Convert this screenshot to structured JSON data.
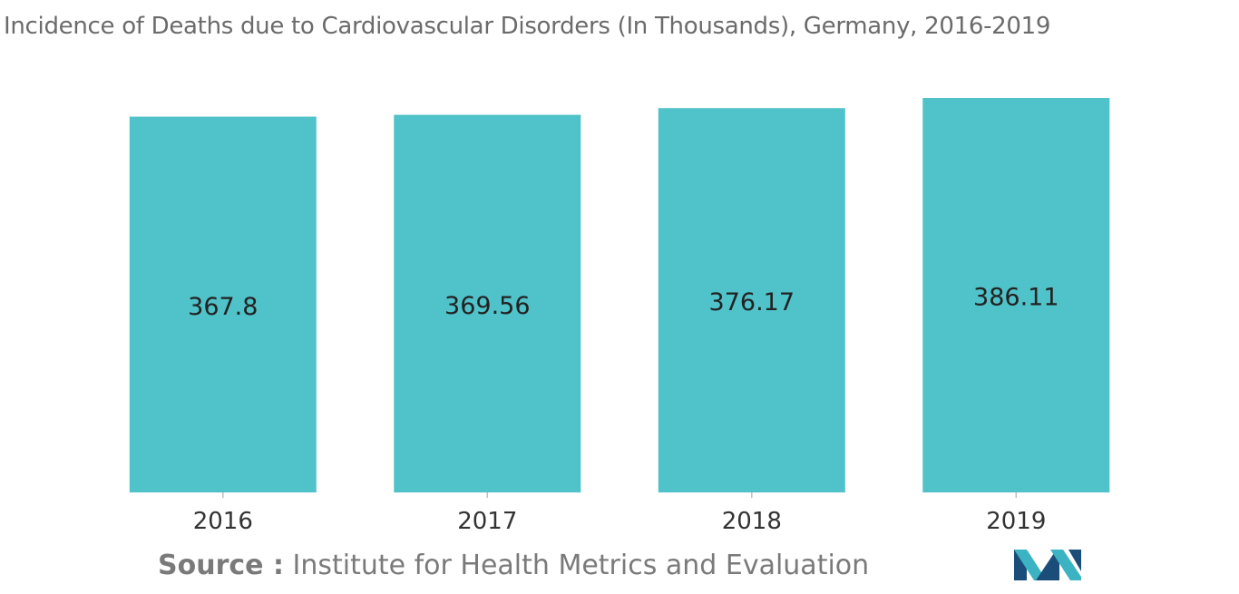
{
  "title": "Incidence of Deaths due to Cardiovascular Disorders (In Thousands), Germany, 2016-2019",
  "source": {
    "label": "Source :",
    "text": "Institute for Health Metrics and Evaluation"
  },
  "logo": {
    "icon": "mordor-intelligence-logo-icon",
    "colors": [
      "#1a4d7a",
      "#3bb3c3"
    ]
  },
  "colors": {
    "bar": "#50c2c9",
    "value_label": "#222222",
    "tick_label": "#333333",
    "axis": "#bfbfbf"
  },
  "chart_data": {
    "type": "bar",
    "title": "Incidence of Deaths due to Cardiovascular Disorders (In Thousands), Germany, 2016-2019",
    "categories": [
      "2016",
      "2017",
      "2018",
      "2019"
    ],
    "values": [
      367.8,
      369.56,
      376.17,
      386.11
    ],
    "value_labels": [
      "367.8",
      "369.56",
      "376.17",
      "386.11"
    ],
    "xlabel": "",
    "ylabel": "",
    "ylim": [
      0,
      400
    ],
    "grid": false,
    "legend": "none"
  }
}
